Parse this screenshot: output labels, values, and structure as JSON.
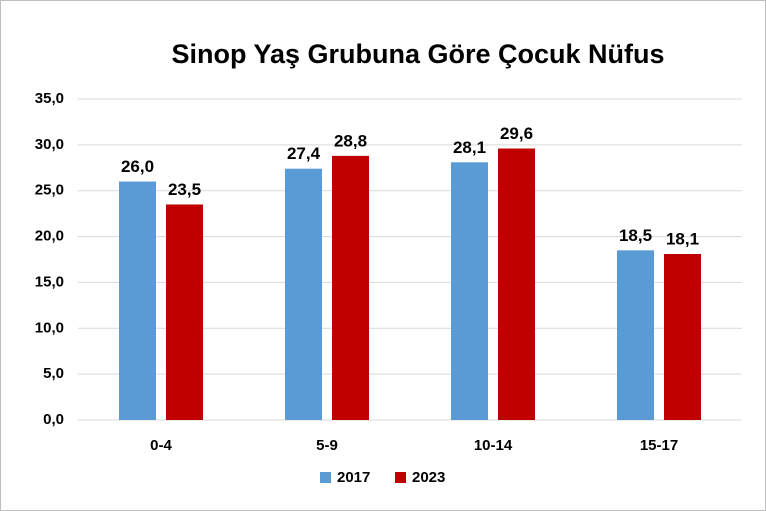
{
  "chart_data": {
    "type": "bar",
    "title": "Sinop Yaş Grubuna Göre Çocuk Nüfus",
    "categories": [
      "0-4",
      "5-9",
      "10-14",
      "15-17"
    ],
    "series": [
      {
        "name": "2017",
        "color": "#5b9bd5",
        "values": [
          26.0,
          27.4,
          28.1,
          18.5
        ],
        "value_labels": [
          "26,0",
          "27,4",
          "28,1",
          "18,5"
        ]
      },
      {
        "name": "2023",
        "color": "#c00000",
        "values": [
          23.5,
          28.8,
          29.6,
          18.1
        ],
        "value_labels": [
          "23,5",
          "28,8",
          "29,6",
          "18,1"
        ]
      }
    ],
    "ylim": [
      0,
      35
    ],
    "yticks": [
      {
        "value": 0,
        "label": "0,0"
      },
      {
        "value": 5,
        "label": "5,0"
      },
      {
        "value": 10,
        "label": "10,0"
      },
      {
        "value": 15,
        "label": "15,0"
      },
      {
        "value": 20,
        "label": "20,0"
      },
      {
        "value": 25,
        "label": "25,0"
      },
      {
        "value": 30,
        "label": "30,0"
      },
      {
        "value": 35,
        "label": "35,0"
      }
    ],
    "grid": true,
    "legend": "bottom"
  }
}
